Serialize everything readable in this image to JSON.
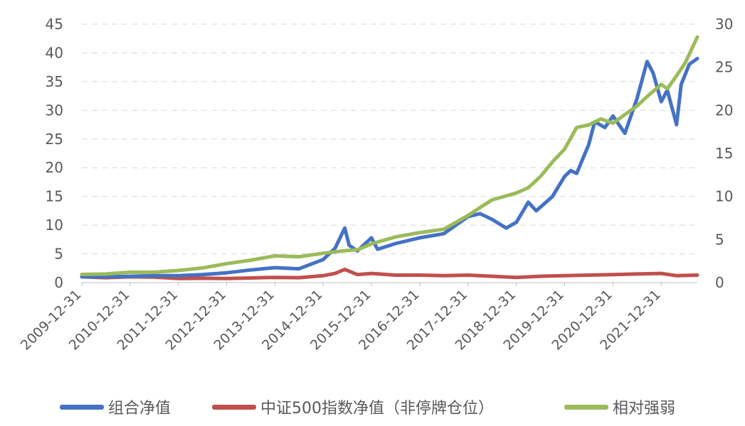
{
  "chart_data": {
    "type": "line",
    "title": "",
    "xlabel": "",
    "ylabel": "",
    "y_left": {
      "min": 0,
      "max": 45,
      "ticks": [
        "0",
        "5",
        "10",
        "15",
        "20",
        "25",
        "30",
        "35",
        "40",
        "45"
      ]
    },
    "y_right": {
      "min": 0,
      "max": 30,
      "ticks": [
        "0",
        "5",
        "10",
        "15",
        "20",
        "25",
        "30"
      ]
    },
    "x_range": [
      "2009-12-31",
      "2022-09-30"
    ],
    "x_ticks": [
      "2009-12-31",
      "2010-12-31",
      "2011-12-31",
      "2012-12-31",
      "2013-12-31",
      "2014-12-31",
      "2015-12-31",
      "2016-12-31",
      "2017-12-31",
      "2018-12-31",
      "2019-12-31",
      "2020-12-31",
      "2021-12-31"
    ],
    "grid": "horizontal dashed",
    "legend_position": "bottom",
    "series": [
      {
        "name": "组合净值",
        "axis": "left",
        "color": "#4472C4",
        "points": [
          [
            "2009-12-31",
            1.0
          ],
          [
            "2010-06-30",
            1.0
          ],
          [
            "2010-12-31",
            1.1
          ],
          [
            "2011-06-30",
            1.2
          ],
          [
            "2011-12-31",
            1.2
          ],
          [
            "2012-06-30",
            1.4
          ],
          [
            "2012-12-31",
            1.7
          ],
          [
            "2013-06-30",
            2.2
          ],
          [
            "2013-12-31",
            2.6
          ],
          [
            "2014-06-30",
            2.4
          ],
          [
            "2014-12-31",
            4.0
          ],
          [
            "2015-03-31",
            6.0
          ],
          [
            "2015-06-12",
            9.5
          ],
          [
            "2015-07-15",
            6.5
          ],
          [
            "2015-09-15",
            5.5
          ],
          [
            "2015-12-31",
            7.8
          ],
          [
            "2016-02-15",
            5.8
          ],
          [
            "2016-06-30",
            6.8
          ],
          [
            "2016-12-31",
            7.8
          ],
          [
            "2017-06-30",
            8.5
          ],
          [
            "2017-12-31",
            11.5
          ],
          [
            "2018-03-31",
            12.0
          ],
          [
            "2018-06-30",
            11.0
          ],
          [
            "2018-10-15",
            9.5
          ],
          [
            "2018-12-31",
            10.5
          ],
          [
            "2019-03-31",
            14.0
          ],
          [
            "2019-05-31",
            12.5
          ],
          [
            "2019-09-30",
            15.0
          ],
          [
            "2019-12-31",
            18.5
          ],
          [
            "2020-02-15",
            19.5
          ],
          [
            "2020-03-31",
            19.0
          ],
          [
            "2020-06-30",
            24.0
          ],
          [
            "2020-08-15",
            28.0
          ],
          [
            "2020-10-31",
            27.0
          ],
          [
            "2020-12-31",
            29.0
          ],
          [
            "2021-03-31",
            26.0
          ],
          [
            "2021-06-30",
            32.0
          ],
          [
            "2021-09-15",
            38.5
          ],
          [
            "2021-10-31",
            36.5
          ],
          [
            "2021-12-31",
            31.5
          ],
          [
            "2022-02-15",
            33.5
          ],
          [
            "2022-04-26",
            27.5
          ],
          [
            "2022-05-31",
            34.5
          ],
          [
            "2022-07-31",
            38.0
          ],
          [
            "2022-09-30",
            39.0
          ]
        ]
      },
      {
        "name": "中证500指数净值（非停牌仓位）",
        "axis": "left",
        "color": "#C0504D",
        "points": [
          [
            "2009-12-31",
            1.0
          ],
          [
            "2010-06-30",
            0.85
          ],
          [
            "2010-12-31",
            1.0
          ],
          [
            "2011-06-30",
            0.95
          ],
          [
            "2011-12-31",
            0.7
          ],
          [
            "2012-06-30",
            0.75
          ],
          [
            "2012-12-31",
            0.7
          ],
          [
            "2013-06-30",
            0.8
          ],
          [
            "2013-12-31",
            0.9
          ],
          [
            "2014-06-30",
            0.85
          ],
          [
            "2014-12-31",
            1.2
          ],
          [
            "2015-03-31",
            1.6
          ],
          [
            "2015-06-12",
            2.3
          ],
          [
            "2015-09-15",
            1.4
          ],
          [
            "2015-12-31",
            1.6
          ],
          [
            "2016-06-30",
            1.3
          ],
          [
            "2016-12-31",
            1.3
          ],
          [
            "2017-06-30",
            1.2
          ],
          [
            "2017-12-31",
            1.3
          ],
          [
            "2018-06-30",
            1.1
          ],
          [
            "2018-12-31",
            0.9
          ],
          [
            "2019-06-30",
            1.1
          ],
          [
            "2019-12-31",
            1.2
          ],
          [
            "2020-06-30",
            1.3
          ],
          [
            "2020-12-31",
            1.4
          ],
          [
            "2021-06-30",
            1.5
          ],
          [
            "2021-12-31",
            1.6
          ],
          [
            "2022-04-26",
            1.2
          ],
          [
            "2022-09-30",
            1.3
          ]
        ]
      },
      {
        "name": "相对强弱",
        "axis": "right",
        "color": "#9BBB59",
        "points": [
          [
            "2009-12-31",
            0.95
          ],
          [
            "2010-06-30",
            1.0
          ],
          [
            "2010-12-31",
            1.2
          ],
          [
            "2011-06-30",
            1.2
          ],
          [
            "2011-12-31",
            1.4
          ],
          [
            "2012-06-30",
            1.7
          ],
          [
            "2012-12-31",
            2.2
          ],
          [
            "2013-06-30",
            2.6
          ],
          [
            "2013-12-31",
            3.1
          ],
          [
            "2014-06-30",
            3.0
          ],
          [
            "2014-12-31",
            3.4
          ],
          [
            "2015-06-12",
            3.7
          ],
          [
            "2015-09-15",
            3.8
          ],
          [
            "2015-12-31",
            4.5
          ],
          [
            "2016-06-30",
            5.3
          ],
          [
            "2016-12-31",
            5.8
          ],
          [
            "2017-06-30",
            6.2
          ],
          [
            "2017-12-31",
            7.8
          ],
          [
            "2018-03-31",
            8.7
          ],
          [
            "2018-06-30",
            9.6
          ],
          [
            "2018-09-30",
            10.0
          ],
          [
            "2018-12-31",
            10.4
          ],
          [
            "2019-03-31",
            11.0
          ],
          [
            "2019-06-30",
            12.3
          ],
          [
            "2019-09-30",
            14.0
          ],
          [
            "2019-12-31",
            15.5
          ],
          [
            "2020-03-31",
            18.0
          ],
          [
            "2020-06-30",
            18.3
          ],
          [
            "2020-09-30",
            19.0
          ],
          [
            "2020-12-31",
            18.5
          ],
          [
            "2021-03-31",
            19.5
          ],
          [
            "2021-06-30",
            20.5
          ],
          [
            "2021-09-30",
            21.8
          ],
          [
            "2021-12-31",
            23.0
          ],
          [
            "2022-02-15",
            22.5
          ],
          [
            "2022-04-26",
            24.0
          ],
          [
            "2022-06-30",
            25.5
          ],
          [
            "2022-09-30",
            28.5
          ]
        ]
      }
    ]
  }
}
